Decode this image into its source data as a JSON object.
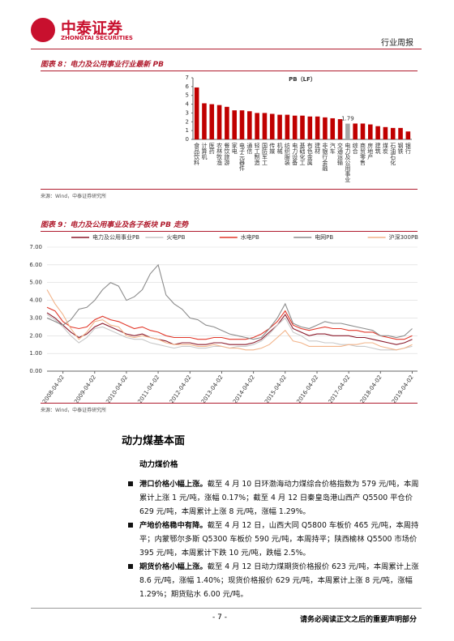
{
  "header": {
    "logo_cn": "中泰证券",
    "logo_en": "ZHONGTAI SECURITIES",
    "report_type": "行业周报"
  },
  "figures": [
    {
      "title": "图表 8：电力及公用事业行业最新 PB",
      "source": "来源：Wind，中泰证券研究所"
    },
    {
      "title": "图表 9：电力及公用事业及各子板块 PB 走势",
      "source": "来源：Wind，中泰证券研究所"
    }
  ],
  "chart_data": [
    {
      "type": "bar",
      "categories": [
        "食品饮料",
        "计算机",
        "医药",
        "农林牧渔",
        "餐饮旅游",
        "家电",
        "电子元器件",
        "通信",
        "轻工制造",
        "国防军工",
        "传媒",
        "机械",
        "纺织服装",
        "电力设备",
        "基础化工",
        "有色金属",
        "建材",
        "非银行金融",
        "汽车",
        "交通运输",
        "电力及公用事业",
        "综合",
        "商贸零售",
        "房地产",
        "建筑",
        "煤炭",
        "石油石化",
        "钢铁",
        "银行"
      ],
      "series": [
        {
          "name": "PB（LF）",
          "color": "#c00000",
          "values": [
            5.9,
            4.1,
            4.0,
            3.9,
            3.7,
            3.3,
            3.3,
            3.2,
            3.0,
            3.0,
            2.9,
            2.8,
            2.8,
            2.7,
            2.7,
            2.6,
            2.6,
            2.5,
            2.4,
            2.3,
            1.79,
            1.8,
            1.8,
            1.7,
            1.5,
            1.4,
            1.3,
            1.3,
            0.9
          ]
        }
      ],
      "highlight_category": "电力及公用事业",
      "highlight_color": "#a6a6a6",
      "ylim": [
        0,
        7
      ],
      "yticks": [
        0,
        1,
        2,
        3,
        4,
        5,
        6,
        7
      ]
    },
    {
      "type": "line",
      "x": [
        "2007-10-02",
        "2008-01-02",
        "2008-04-02",
        "2008-07-02",
        "2008-10-02",
        "2009-01-02",
        "2009-04-02",
        "2009-07-02",
        "2009-10-02",
        "2010-01-02",
        "2010-04-02",
        "2010-07-02",
        "2010-10-02",
        "2011-01-02",
        "2011-04-02",
        "2011-07-02",
        "2011-10-02",
        "2012-01-02",
        "2012-04-02",
        "2012-07-02",
        "2012-10-02",
        "2013-01-02",
        "2013-04-02",
        "2013-07-02",
        "2013-10-02",
        "2014-01-02",
        "2014-04-02",
        "2014-07-02",
        "2014-10-02",
        "2015-01-02",
        "2015-04-02",
        "2015-07-02",
        "2015-10-02",
        "2016-01-02",
        "2016-04-02",
        "2016-07-02",
        "2016-10-02",
        "2017-01-02",
        "2017-04-02",
        "2017-07-02",
        "2017-10-02",
        "2018-01-02",
        "2018-04-02",
        "2018-07-02",
        "2018-10-02",
        "2019-01-02",
        "2019-04-02"
      ],
      "series": [
        {
          "name": "电力及公用事业PB",
          "color": "#8b1a2b",
          "values": [
            3.3,
            3.0,
            2.6,
            2.2,
            1.9,
            2.1,
            2.5,
            2.7,
            2.5,
            2.3,
            2.1,
            2.0,
            2.1,
            1.9,
            1.8,
            1.7,
            1.5,
            1.6,
            1.6,
            1.5,
            1.5,
            1.6,
            1.6,
            1.5,
            1.5,
            1.5,
            1.6,
            1.8,
            2.2,
            2.6,
            3.2,
            2.4,
            2.2,
            2.0,
            2.1,
            2.1,
            2.0,
            2.0,
            2.0,
            1.9,
            1.9,
            1.8,
            1.7,
            1.6,
            1.5,
            1.6,
            1.8
          ]
        },
        {
          "name": "火电PB",
          "color": "#c8c8c8",
          "values": [
            3.2,
            2.9,
            2.5,
            2.0,
            1.6,
            1.9,
            2.4,
            2.5,
            2.3,
            2.1,
            1.9,
            1.8,
            1.8,
            1.6,
            1.5,
            1.4,
            1.3,
            1.4,
            1.4,
            1.3,
            1.3,
            1.4,
            1.4,
            1.3,
            1.4,
            1.4,
            1.5,
            1.7,
            2.1,
            2.6,
            3.0,
            2.2,
            2.0,
            1.7,
            1.7,
            1.6,
            1.6,
            1.5,
            1.5,
            1.4,
            1.4,
            1.3,
            1.2,
            1.2,
            1.2,
            1.3,
            1.4
          ]
        },
        {
          "name": "水电PB",
          "color": "#e2382a",
          "values": [
            3.6,
            3.4,
            2.8,
            2.5,
            2.4,
            2.5,
            2.9,
            3.1,
            2.9,
            2.8,
            2.6,
            2.4,
            2.5,
            2.3,
            2.2,
            2.0,
            1.9,
            1.9,
            1.9,
            1.8,
            1.8,
            1.9,
            1.9,
            1.8,
            1.8,
            1.8,
            1.9,
            2.1,
            2.4,
            2.8,
            3.4,
            2.6,
            2.4,
            2.3,
            2.4,
            2.5,
            2.4,
            2.4,
            2.3,
            2.3,
            2.2,
            2.2,
            2.0,
            1.9,
            1.8,
            1.8,
            2.0
          ]
        },
        {
          "name": "电网PB",
          "color": "#8c8c8c",
          "values": [
            3.0,
            2.8,
            2.6,
            2.9,
            3.5,
            3.6,
            4.0,
            4.6,
            5.0,
            4.8,
            4.0,
            4.2,
            4.6,
            5.5,
            6.0,
            4.3,
            3.8,
            3.5,
            3.0,
            2.9,
            2.6,
            2.5,
            2.3,
            2.1,
            2.0,
            1.9,
            1.8,
            1.9,
            2.4,
            3.0,
            3.8,
            2.7,
            2.5,
            2.4,
            2.6,
            2.8,
            2.7,
            2.7,
            2.6,
            2.5,
            2.4,
            2.3,
            2.0,
            2.0,
            1.9,
            2.0,
            2.4
          ]
        },
        {
          "name": "沪深300PB",
          "color": "#f2b48a",
          "values": [
            4.6,
            3.8,
            3.2,
            2.4,
            1.8,
            2.2,
            2.8,
            2.9,
            2.6,
            2.5,
            2.0,
            1.9,
            2.0,
            1.9,
            1.8,
            1.6,
            1.5,
            1.5,
            1.5,
            1.4,
            1.4,
            1.5,
            1.4,
            1.3,
            1.3,
            1.2,
            1.2,
            1.3,
            1.5,
            1.9,
            2.3,
            1.7,
            1.6,
            1.4,
            1.4,
            1.4,
            1.4,
            1.4,
            1.5,
            1.5,
            1.6,
            1.6,
            1.4,
            1.3,
            1.2,
            1.3,
            1.5
          ]
        }
      ],
      "xlim": [
        "2007-10-02",
        "2019-06-02"
      ],
      "xticks": [
        "2008-04-02",
        "2009-04-02",
        "2010-04-02",
        "2011-04-02",
        "2012-04-02",
        "2013-04-02",
        "2014-04-02",
        "2015-04-02",
        "2016-04-02",
        "2017-04-02",
        "2018-04-02",
        "2019-04-02"
      ],
      "ylim": [
        0,
        7
      ],
      "yticks": [
        {
          "value": 0,
          "label": "0.00"
        },
        {
          "value": 1,
          "label": "1.00"
        },
        {
          "value": 2,
          "label": "2.00"
        },
        {
          "value": 3,
          "label": "3.00"
        },
        {
          "value": 4,
          "label": "4.00"
        },
        {
          "value": 5,
          "label": "5.00"
        },
        {
          "value": 6,
          "label": "6.00"
        },
        {
          "value": 7,
          "label": "7.00"
        }
      ],
      "grid": true
    }
  ],
  "section": {
    "heading": "动力煤基本面",
    "subheading": "动力煤价格",
    "bullets": [
      {
        "lead": "港口价格小幅上涨。",
        "text": "截至 4 月 10 日环渤海动力煤综合价格指数为 579 元/吨，本周累计上涨 1 元/吨，涨幅 0.17%；截至 4 月 12 日秦皇岛港山西产 Q5500 平仓价 629 元/吨，本周累计上涨 8 元/吨，涨幅 1.29%。"
      },
      {
        "lead": "产地价格稳中有降。",
        "text": "截至 4 月 12 日，山西大同 Q5800 车板价 465 元/吨，本周持平；内蒙鄂尔多斯 Q5300 车板价 590 元/吨，本周持平；陕西榆林 Q5500 市场价 395 元/吨，本周累计下跌 10 元/吨，跌幅 2.5%。"
      },
      {
        "lead": "期货价格小幅上涨。",
        "text": "截至 4 月 12 日动力煤期货价格报价 623 元/吨，本周累计上涨 8.6 元/吨，涨幅 1.40%；现货价格报价 629 元/吨，本周累计上涨 8 元/吨，涨幅 1.29%；期货贴水 6.00 元/吨。"
      }
    ]
  },
  "footer": {
    "page": "- 7 -",
    "disclaimer": "请务必阅读正文之后的重要声明部分"
  }
}
